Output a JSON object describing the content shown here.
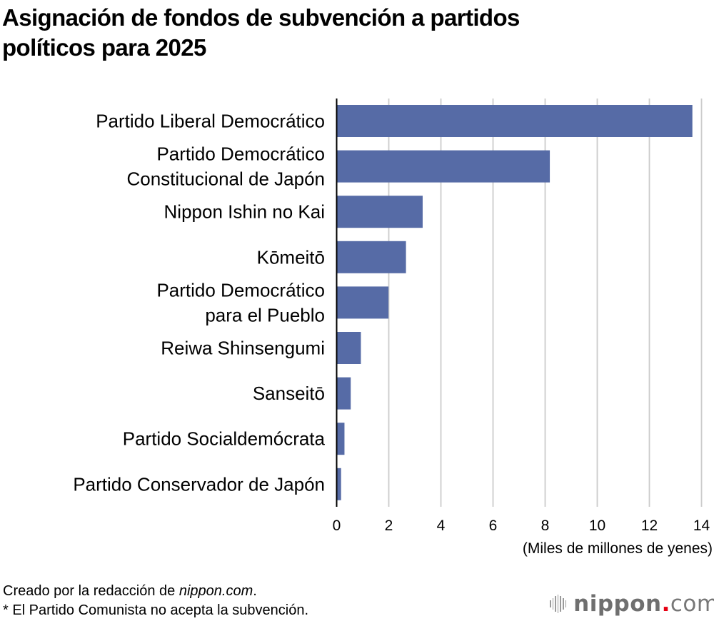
{
  "title": {
    "line1": "Asignación de fondos de subvención a partidos",
    "line2": "políticos para 2025"
  },
  "colors": {
    "bar": "#566ba6",
    "grid": "#cccccc",
    "axis": "#000000",
    "logo_dot": "#e60012"
  },
  "chart_data": {
    "type": "bar",
    "orientation": "horizontal",
    "title": "Asignación de fondos de subvención a partidos políticos para 2025",
    "xlabel": "(Miles de millones de yenes)",
    "ylabel": "",
    "xlim": [
      0,
      14
    ],
    "grid": true,
    "x_ticks": [
      "0",
      "2",
      "4",
      "6",
      "8",
      "10",
      "12",
      "14"
    ],
    "categories": [
      [
        "Partido Liberal Democrático"
      ],
      [
        "Partido Democrático",
        "Constitucional de Japón"
      ],
      [
        "Nippon Ishin no Kai"
      ],
      [
        "Kōmeitō"
      ],
      [
        "Partido Democrático",
        "para el Pueblo"
      ],
      [
        "Reiwa Shinsengumi"
      ],
      [
        "Sanseitō"
      ],
      [
        "Partido Socialdemócrata"
      ],
      [
        "Partido Conservador de Japón"
      ]
    ],
    "values": [
      13.65,
      8.18,
      3.3,
      2.66,
      1.99,
      0.93,
      0.54,
      0.3,
      0.17
    ]
  },
  "footer": {
    "credit_prefix": "Creado por la redacción de ",
    "credit_site": "nippon.com",
    "credit_suffix": ".",
    "note": "* El Partido Comunista no acepta la subvención."
  },
  "logo": {
    "name": "nippon",
    "dot": ".",
    "tld": "com"
  }
}
